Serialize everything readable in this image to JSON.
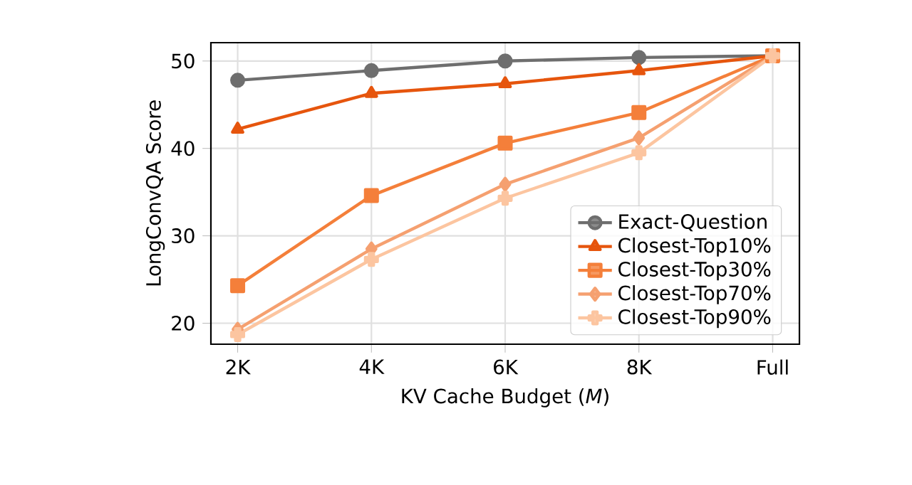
{
  "chart_data": {
    "type": "line",
    "xlabel": "KV Cache Budget (*M*)",
    "ylabel": "LongConvQA Score",
    "categories": [
      "2K",
      "4K",
      "6K",
      "8K",
      "Full"
    ],
    "ylim": [
      17.6,
      52.1
    ],
    "yticks": [
      20,
      30,
      40,
      50
    ],
    "grid": true,
    "legend": "bottom right",
    "line_style": "solid",
    "series": [
      {
        "name": "Exact-Question",
        "color": "#6e6e6e",
        "marker": "circle",
        "values": [
          47.8,
          48.9,
          50.0,
          50.4,
          50.6
        ]
      },
      {
        "name": "Closest-Top10%",
        "color": "#e6550d",
        "marker": "triangle",
        "values": [
          42.2,
          46.3,
          47.4,
          48.9,
          50.6
        ]
      },
      {
        "name": "Closest-Top30%",
        "color": "#f47f3a",
        "marker": "square",
        "values": [
          24.3,
          34.6,
          40.6,
          44.1,
          50.6
        ]
      },
      {
        "name": "Closest-Top70%",
        "color": "#f5a070",
        "marker": "diamond",
        "values": [
          19.3,
          28.5,
          35.9,
          41.2,
          50.6
        ]
      },
      {
        "name": "Closest-Top90%",
        "color": "#fcc5a0",
        "marker": "cross",
        "values": [
          18.7,
          27.3,
          34.3,
          39.5,
          50.6
        ]
      }
    ]
  }
}
